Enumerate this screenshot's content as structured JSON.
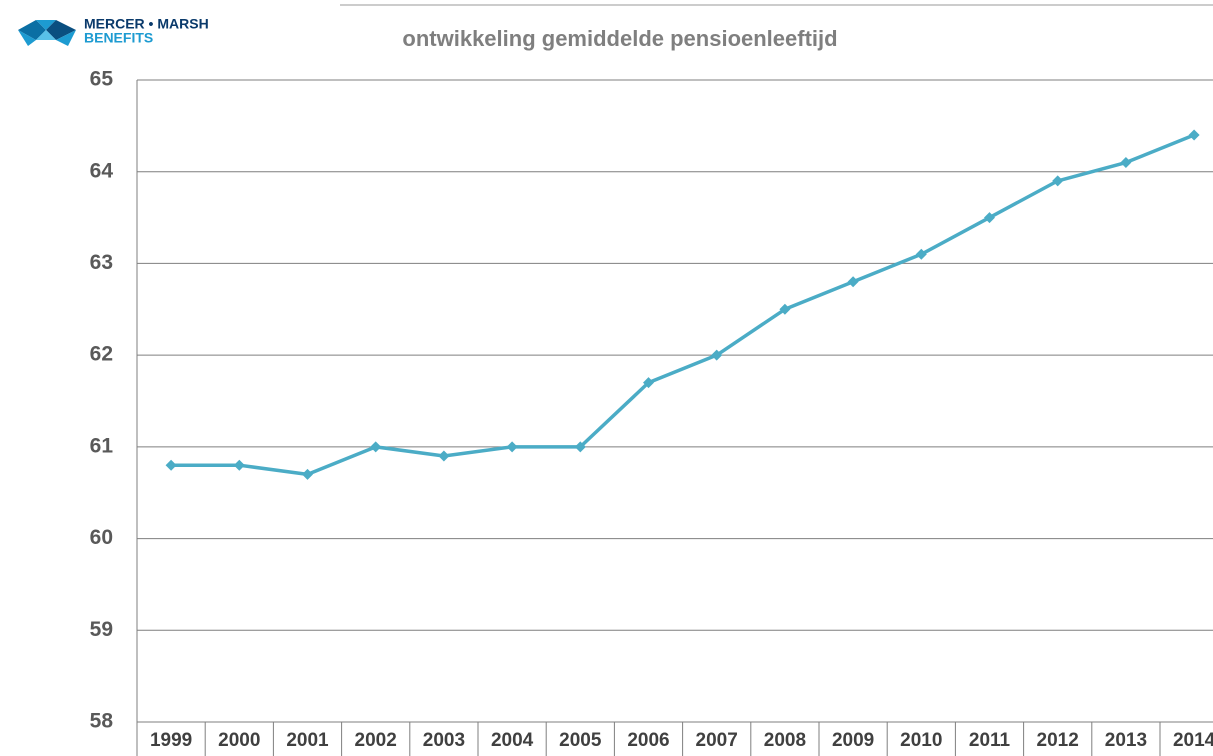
{
  "logo": {
    "line1": "MERCER • MARSH",
    "line2": "BENEFITS"
  },
  "chart_data": {
    "type": "line",
    "title": "ontwikkeling gemiddelde pensioenleeftijd",
    "categories": [
      "1999",
      "2000",
      "2001",
      "2002",
      "2003",
      "2004",
      "2005",
      "2006",
      "2007",
      "2008",
      "2009",
      "2010",
      "2011",
      "2012",
      "2013",
      "2014"
    ],
    "series": [
      {
        "name": "gemiddelde pensioenleeftijd",
        "color": "#4bacc6",
        "values": [
          60.8,
          60.8,
          60.7,
          61.0,
          60.9,
          61.0,
          61.0,
          61.7,
          62.0,
          62.5,
          62.8,
          63.1,
          63.5,
          63.9,
          64.1,
          64.4
        ]
      }
    ],
    "ylim": [
      58,
      65
    ],
    "yticks": [
      58,
      59,
      60,
      61,
      62,
      63,
      64,
      65
    ],
    "grid": true
  }
}
